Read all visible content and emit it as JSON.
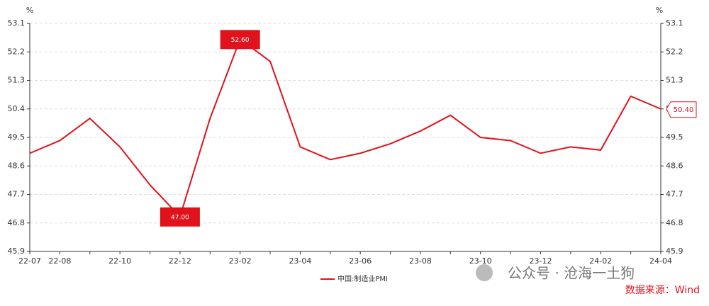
{
  "chart_data": {
    "type": "line",
    "y_unit": "%",
    "y2_unit": "%",
    "categories": [
      "22-07",
      "22-08",
      null,
      "22-10",
      null,
      "22-12",
      null,
      "23-02",
      null,
      "23-04",
      null,
      "23-06",
      null,
      "23-08",
      null,
      "23-10",
      null,
      "23-12",
      null,
      "24-02",
      null,
      "24-04"
    ],
    "series": [
      {
        "name": "中国:制造业PMI",
        "color": "#e0121c",
        "values": [
          49.0,
          49.4,
          50.1,
          49.2,
          48.0,
          47.0,
          50.1,
          52.6,
          51.9,
          49.2,
          48.8,
          49.0,
          49.3,
          49.7,
          50.2,
          49.5,
          49.4,
          49.0,
          49.2,
          49.1,
          50.8,
          50.4
        ],
        "value_labels": [
          null,
          null,
          null,
          null,
          null,
          "47.00",
          null,
          "52.60",
          null,
          null,
          null,
          null,
          null,
          null,
          null,
          null,
          null,
          null,
          null,
          null,
          null,
          "50.40"
        ]
      }
    ],
    "ylim": [
      45.9,
      53.1
    ],
    "yticks": [
      45.9,
      46.8,
      47.7,
      48.6,
      49.5,
      50.4,
      51.3,
      52.2,
      53.1
    ],
    "y2lim": [
      45.9,
      53.1
    ],
    "y2ticks": [
      45.9,
      46.8,
      47.7,
      48.6,
      49.5,
      50.4,
      51.3,
      52.2,
      53.1
    ],
    "grid": true,
    "watermark": "公众号 · 沧海一土狗",
    "source": "数据来源：Wind"
  }
}
